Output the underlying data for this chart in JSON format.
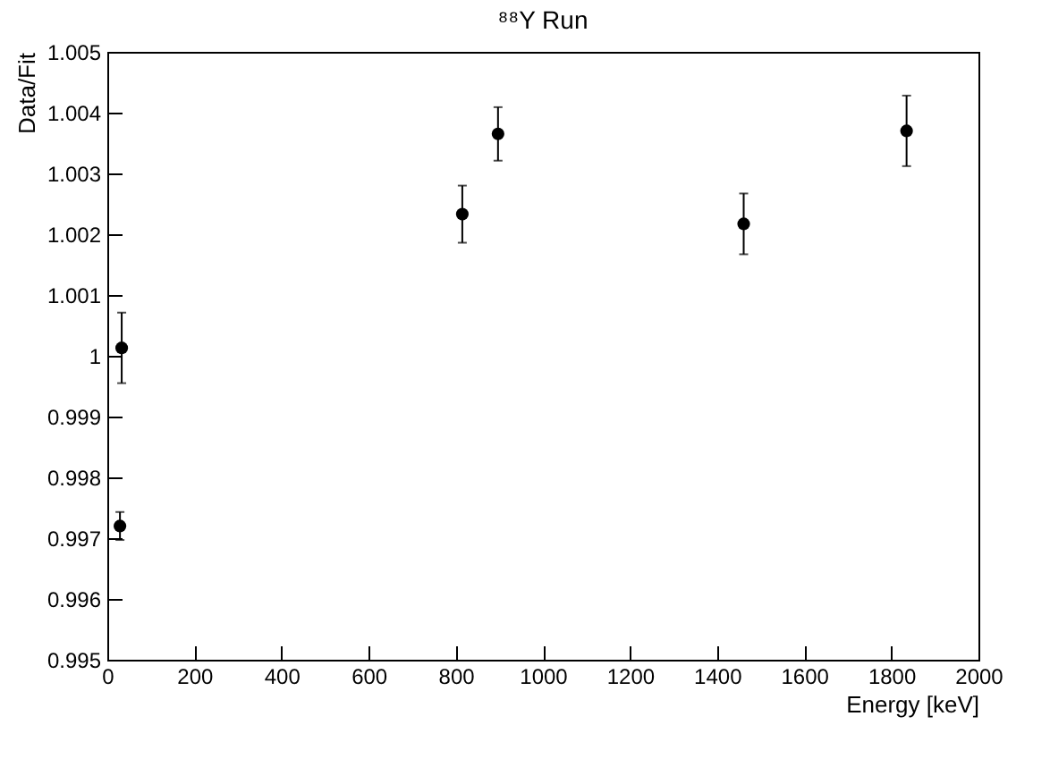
{
  "chart_data": {
    "type": "scatter",
    "title": "⁸⁸Y Run",
    "xlabel": "Energy [keV]",
    "ylabel": "Data/Fit",
    "x": [
      33,
      29,
      815,
      897,
      1461,
      1835
    ],
    "values": [
      1.00013,
      0.9972,
      1.00233,
      1.00365,
      1.00217,
      1.0037
    ],
    "errors": [
      0.00058,
      0.00023,
      0.00047,
      0.00044,
      0.0005,
      0.00058
    ],
    "color": "#000000",
    "marker": "circle",
    "grid": false,
    "xlim": [
      0,
      2000
    ],
    "xticks": [
      0,
      200,
      400,
      600,
      800,
      1000,
      1200,
      1400,
      1600,
      1800,
      2000
    ],
    "ylim": [
      0.995,
      1.005
    ],
    "yticks": [
      0.995,
      0.996,
      0.997,
      0.998,
      0.999,
      1,
      1.001,
      1.002,
      1.003,
      1.004,
      1.005
    ]
  }
}
